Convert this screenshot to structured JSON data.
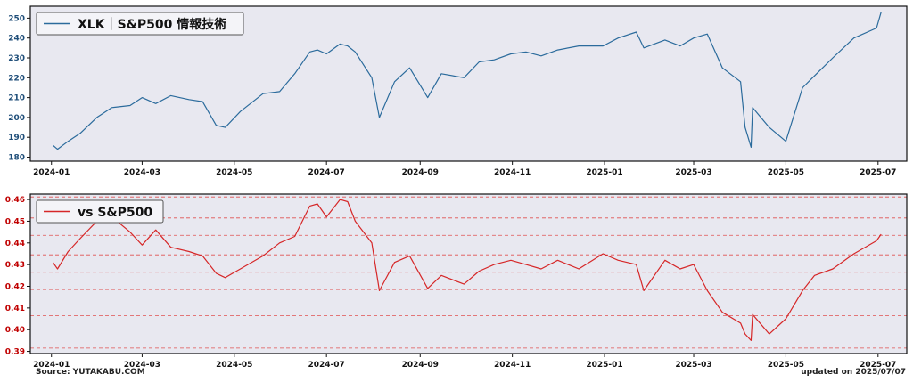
{
  "source_label": "Source: YUTAKABU.COM",
  "updated_label": "updated on 2025/07/07",
  "colors": {
    "top": "#2b6b9c",
    "bottom": "#d62728",
    "bg": "#e8e8f0"
  },
  "chart_data": [
    {
      "type": "line",
      "legend": "XLK｜S&P500 情報技術",
      "legend_position": "top-left",
      "x_ticks": [
        "2024-01",
        "2024-03",
        "2024-05",
        "2024-07",
        "2024-09",
        "2024-11",
        "2025-01",
        "2025-03",
        "2025-05",
        "2025-07"
      ],
      "y_ticks": [
        180,
        190,
        200,
        210,
        220,
        230,
        240,
        250
      ],
      "ylim": [
        178,
        256
      ],
      "xlim": [
        "2023-12-18",
        "2025-07-20"
      ],
      "grid": false,
      "series": [
        {
          "x": [
            "2024-01-02",
            "2024-01-05",
            "2024-01-12",
            "2024-01-20",
            "2024-01-31",
            "2024-02-10",
            "2024-02-22",
            "2024-03-01",
            "2024-03-10",
            "2024-03-20",
            "2024-04-01",
            "2024-04-10",
            "2024-04-19",
            "2024-04-25",
            "2024-05-05",
            "2024-05-20",
            "2024-05-31",
            "2024-06-10",
            "2024-06-20",
            "2024-06-25",
            "2024-07-01",
            "2024-07-10",
            "2024-07-15",
            "2024-07-20",
            "2024-07-31",
            "2024-08-05",
            "2024-08-15",
            "2024-08-25",
            "2024-09-06",
            "2024-09-15",
            "2024-09-30",
            "2024-10-10",
            "2024-10-20",
            "2024-10-31",
            "2024-11-10",
            "2024-11-20",
            "2024-12-01",
            "2024-12-15",
            "2024-12-31",
            "2025-01-10",
            "2025-01-22",
            "2025-01-27",
            "2025-02-10",
            "2025-02-20",
            "2025-03-01",
            "2025-03-10",
            "2025-03-20",
            "2025-04-01",
            "2025-04-04",
            "2025-04-08",
            "2025-04-09",
            "2025-04-20",
            "2025-05-01",
            "2025-05-12",
            "2025-05-20",
            "2025-06-01",
            "2025-06-15",
            "2025-06-30",
            "2025-07-03"
          ],
          "y": [
            186,
            184,
            188,
            192,
            200,
            205,
            206,
            210,
            207,
            211,
            209,
            208,
            196,
            195,
            203,
            212,
            213,
            222,
            233,
            234,
            232,
            237,
            236,
            233,
            220,
            200,
            218,
            225,
            210,
            222,
            220,
            228,
            229,
            232,
            233,
            231,
            234,
            236,
            236,
            240,
            243,
            235,
            239,
            236,
            240,
            242,
            225,
            218,
            195,
            185,
            205,
            195,
            188,
            215,
            221,
            230,
            240,
            245,
            253
          ]
        }
      ]
    },
    {
      "type": "line",
      "legend": "vs S&P500",
      "legend_position": "top-left",
      "x_ticks": [
        "2024-01",
        "2024-03",
        "2024-05",
        "2024-07",
        "2024-09",
        "2024-11",
        "2025-01",
        "2025-03",
        "2025-05",
        "2025-07"
      ],
      "y_ticks": [
        0.39,
        0.4,
        0.41,
        0.42,
        0.43,
        0.44,
        0.45,
        0.46
      ],
      "ylim": [
        0.389,
        0.4625
      ],
      "xlim": [
        "2023-12-18",
        "2025-07-20"
      ],
      "hlines": [
        0.3915,
        0.4065,
        0.4185,
        0.4265,
        0.4345,
        0.4435,
        0.4515,
        0.4612
      ],
      "series": [
        {
          "x": [
            "2024-01-02",
            "2024-01-05",
            "2024-01-12",
            "2024-01-20",
            "2024-01-31",
            "2024-02-10",
            "2024-02-22",
            "2024-03-01",
            "2024-03-10",
            "2024-03-20",
            "2024-04-01",
            "2024-04-10",
            "2024-04-19",
            "2024-04-25",
            "2024-05-05",
            "2024-05-20",
            "2024-05-31",
            "2024-06-10",
            "2024-06-20",
            "2024-06-25",
            "2024-07-01",
            "2024-07-10",
            "2024-07-15",
            "2024-07-20",
            "2024-07-31",
            "2024-08-05",
            "2024-08-15",
            "2024-08-25",
            "2024-09-06",
            "2024-09-15",
            "2024-09-30",
            "2024-10-10",
            "2024-10-20",
            "2024-10-31",
            "2024-11-10",
            "2024-11-20",
            "2024-12-01",
            "2024-12-15",
            "2024-12-31",
            "2025-01-10",
            "2025-01-22",
            "2025-01-27",
            "2025-02-10",
            "2025-02-20",
            "2025-03-01",
            "2025-03-10",
            "2025-03-20",
            "2025-04-01",
            "2025-04-04",
            "2025-04-08",
            "2025-04-09",
            "2025-04-20",
            "2025-05-01",
            "2025-05-12",
            "2025-05-20",
            "2025-06-01",
            "2025-06-15",
            "2025-06-30",
            "2025-07-03"
          ],
          "y": [
            0.431,
            0.428,
            0.436,
            0.442,
            0.45,
            0.452,
            0.445,
            0.439,
            0.446,
            0.438,
            0.436,
            0.434,
            0.426,
            0.424,
            0.428,
            0.434,
            0.44,
            0.443,
            0.457,
            0.458,
            0.452,
            0.46,
            0.459,
            0.45,
            0.44,
            0.418,
            0.431,
            0.434,
            0.419,
            0.425,
            0.421,
            0.427,
            0.43,
            0.432,
            0.43,
            0.428,
            0.432,
            0.428,
            0.435,
            0.432,
            0.43,
            0.418,
            0.432,
            0.428,
            0.43,
            0.418,
            0.408,
            0.403,
            0.398,
            0.395,
            0.407,
            0.398,
            0.405,
            0.418,
            0.425,
            0.428,
            0.435,
            0.441,
            0.444
          ]
        }
      ]
    }
  ]
}
